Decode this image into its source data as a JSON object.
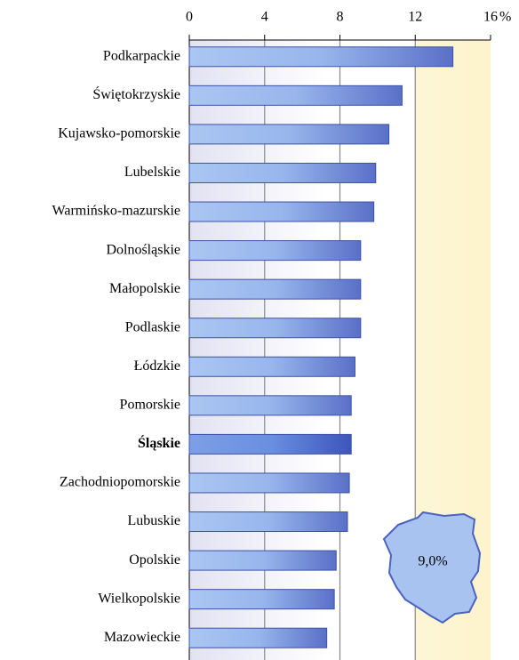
{
  "chart_data": {
    "type": "barh",
    "categories": [
      "Podkarpackie",
      "Świętokrzyskie",
      "Kujawsko-pomorskie",
      "Lubelskie",
      "Warmińsko-mazurskie",
      "Dolnośląskie",
      "Małopolskie",
      "Podlaskie",
      "Łódzkie",
      "Pomorskie",
      "Śląskie",
      "Zachodniopomorskie",
      "Lubuskie",
      "Opolskie",
      "Wielkopolskie",
      "Mazowieckie"
    ],
    "values": [
      14.0,
      11.3,
      10.6,
      9.9,
      9.8,
      9.1,
      9.1,
      9.1,
      8.8,
      8.6,
      8.6,
      8.5,
      8.4,
      7.8,
      7.7,
      7.3
    ],
    "highlight_index": 10,
    "xlim": [
      0,
      16
    ],
    "xticks": [
      0,
      4,
      8,
      12,
      16
    ],
    "unit": "%",
    "grid": true,
    "annotation": "9,0%"
  }
}
